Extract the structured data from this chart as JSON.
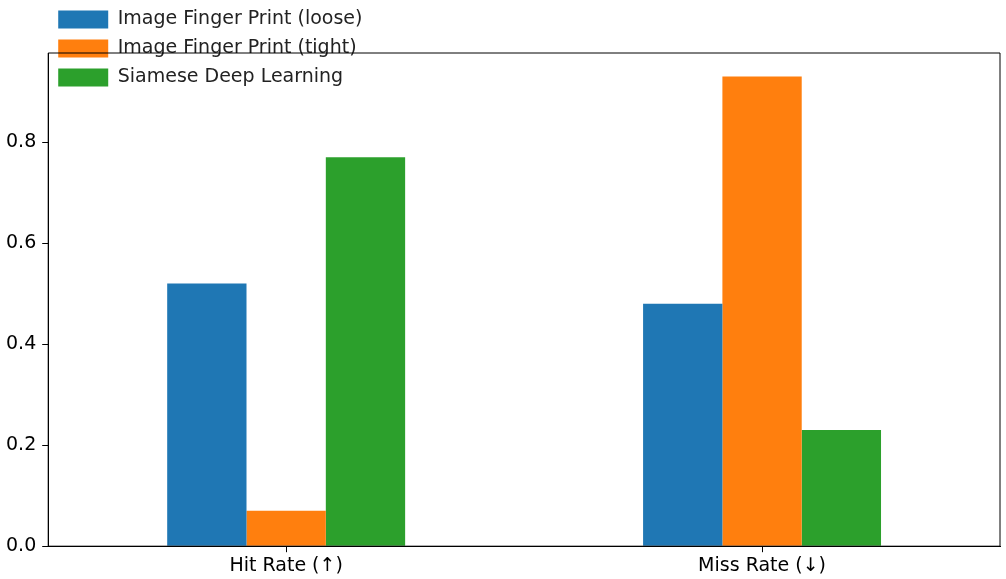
{
  "chart_data": {
    "type": "bar",
    "categories": [
      "Hit Rate (↑)",
      "Miss Rate (↓)"
    ],
    "series": [
      {
        "name": "Image Finger Print (loose)",
        "color": "#1f77b4",
        "values": [
          0.52,
          0.48
        ]
      },
      {
        "name": "Image Finger Print (tight)",
        "color": "#ff7f0e",
        "values": [
          0.07,
          0.93
        ]
      },
      {
        "name": "Siamese Deep Learning",
        "color": "#2ca02c",
        "values": [
          0.77,
          0.23
        ]
      }
    ],
    "ylim": [
      0,
      0.9765
    ],
    "yticks": [
      {
        "value": 0,
        "label": "0.0"
      },
      0.2,
      0.4,
      0.6,
      0.8
    ],
    "grid": false,
    "legend": "top left"
  }
}
